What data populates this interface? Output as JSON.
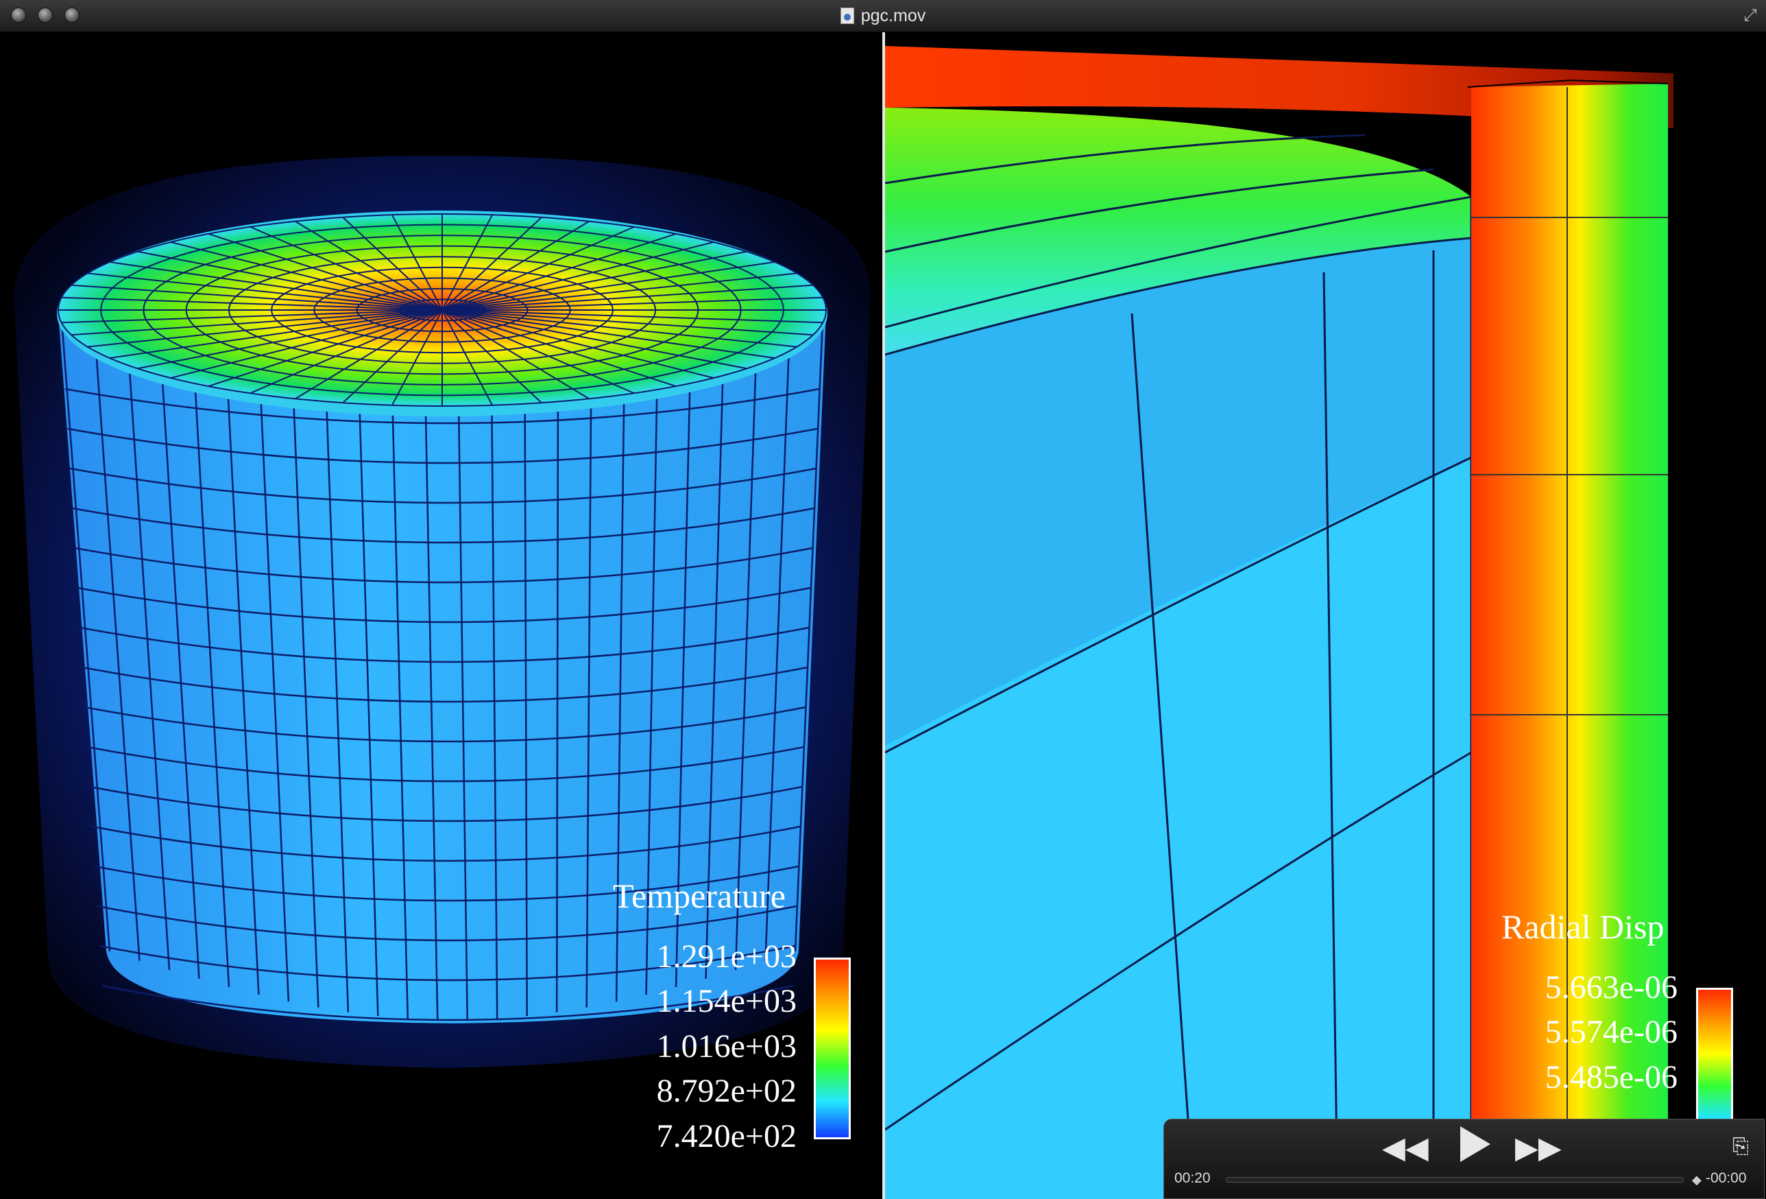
{
  "window": {
    "title": "pgc.mov"
  },
  "left_view": {
    "legend": {
      "title": "Temperature",
      "values": [
        "1.291e+03",
        "1.154e+03",
        "1.016e+03",
        "8.792e+02",
        "7.420e+02"
      ]
    }
  },
  "right_view": {
    "legend": {
      "title": "Radial Disp",
      "values": [
        "5.663e-06",
        "5.574e-06",
        "5.485e-06"
      ]
    }
  },
  "controller": {
    "elapsed": "00:20",
    "remaining": "-00:00"
  },
  "colors": {
    "hot": "#ff2a00",
    "warm": "#ffff00",
    "mid": "#33ff33",
    "cool": "#33ccff",
    "cold": "#0f3cff"
  }
}
